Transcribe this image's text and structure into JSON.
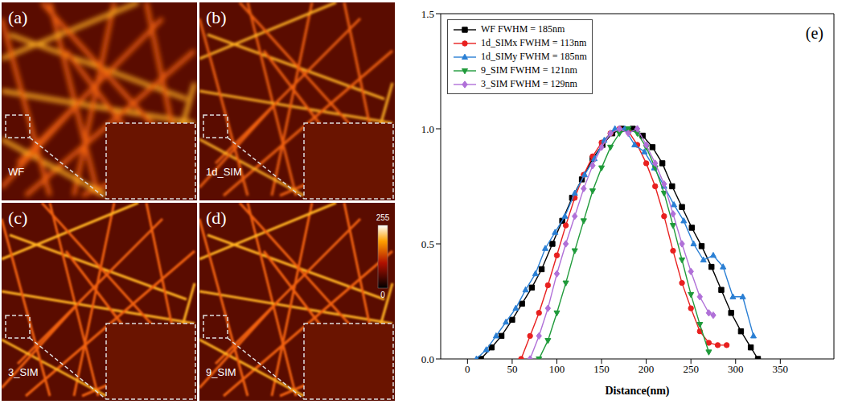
{
  "panels": [
    {
      "letter": "(a)",
      "label": "WF"
    },
    {
      "letter": "(b)",
      "label": "1d_SIM"
    },
    {
      "letter": "(c)",
      "label": "3_SIM"
    },
    {
      "letter": "(d)",
      "label": "9_SIM",
      "colorbar": {
        "range": [
          0,
          255
        ],
        "ticks": [
          0,
          255
        ]
      }
    }
  ],
  "chart_data": {
    "type": "line",
    "panel_label": "(e)",
    "x_label": "Distance(nm)",
    "xlim": [
      -30,
      410
    ],
    "xticks": [
      0,
      50,
      100,
      150,
      200,
      250,
      300,
      350
    ],
    "ylim": [
      0,
      1.5
    ],
    "yticks": [
      {
        "value": 0,
        "label": "0.0"
      },
      {
        "value": 0.5,
        "label": "0.5"
      },
      {
        "value": 1,
        "label": "1.0"
      },
      {
        "value": 1.5,
        "label": "1.5"
      }
    ],
    "legend": "upper left",
    "series": [
      {
        "name": "WF FWHM = 185nm",
        "color": "#000000",
        "marker": "square",
        "x": [
          15,
          27,
          38,
          50,
          61,
          72,
          83,
          95,
          106,
          117,
          128,
          140,
          151,
          162,
          173,
          185,
          196,
          207,
          218,
          229,
          240,
          251,
          262,
          273,
          284,
          295,
          306,
          317,
          325
        ],
        "values": [
          0,
          0.05,
          0.1,
          0.17,
          0.24,
          0.31,
          0.39,
          0.5,
          0.6,
          0.7,
          0.78,
          0.87,
          0.93,
          0.98,
          1.0,
          1.0,
          0.97,
          0.92,
          0.85,
          0.75,
          0.66,
          0.57,
          0.49,
          0.4,
          0.3,
          0.2,
          0.12,
          0.05,
          0
        ]
      },
      {
        "name": "1d_SIMx FWHM = 113nm",
        "color": "#e8201f",
        "marker": "circle",
        "x": [
          60,
          70,
          80,
          90,
          100,
          110,
          120,
          130,
          140,
          150,
          160,
          170,
          180,
          190,
          200,
          210,
          220,
          230,
          240,
          250,
          260,
          270,
          280,
          290
        ],
        "values": [
          0,
          0.1,
          0.2,
          0.32,
          0.45,
          0.58,
          0.7,
          0.8,
          0.88,
          0.94,
          0.98,
          1.0,
          0.99,
          0.93,
          0.85,
          0.75,
          0.62,
          0.47,
          0.33,
          0.22,
          0.12,
          0.07,
          0.06,
          0.06
        ]
      },
      {
        "name": "1d_SIMy FWHM = 185nm",
        "color": "#2a7fd4",
        "marker": "triangle",
        "x": [
          10,
          21,
          32,
          43,
          54,
          65,
          76,
          87,
          98,
          109,
          120,
          131,
          142,
          153,
          165,
          176,
          187,
          198,
          209,
          220,
          231,
          242,
          253,
          264,
          275,
          286,
          297,
          308,
          320
        ],
        "values": [
          0,
          0.04,
          0.1,
          0.16,
          0.22,
          0.3,
          0.37,
          0.48,
          0.55,
          0.62,
          0.72,
          0.8,
          0.87,
          0.95,
          1.0,
          1.0,
          0.93,
          0.9,
          0.83,
          0.75,
          0.67,
          0.6,
          0.5,
          0.43,
          0.45,
          0.4,
          0.27,
          0.27,
          0.1
        ]
      },
      {
        "name": "9_SIM FWHM = 121nm",
        "color": "#1f9a3a",
        "marker": "triangle-down",
        "x": [
          80,
          90,
          100,
          110,
          120,
          130,
          140,
          150,
          160,
          170,
          180,
          190,
          200,
          210,
          220,
          230,
          240,
          250,
          260,
          270
        ],
        "values": [
          0,
          0.08,
          0.2,
          0.33,
          0.47,
          0.6,
          0.73,
          0.83,
          0.92,
          0.98,
          1.0,
          0.98,
          0.92,
          0.83,
          0.72,
          0.58,
          0.43,
          0.28,
          0.15,
          0.03
        ]
      },
      {
        "name": "3_SIM FWHM = 129nm",
        "color": "#b070d8",
        "marker": "diamond",
        "x": [
          70,
          80,
          90,
          100,
          110,
          120,
          130,
          140,
          150,
          160,
          170,
          180,
          190,
          200,
          210,
          220,
          230,
          240,
          250,
          260,
          270,
          275
        ],
        "values": [
          0,
          0.1,
          0.22,
          0.37,
          0.5,
          0.62,
          0.74,
          0.84,
          0.92,
          0.98,
          1.0,
          0.98,
          1.0,
          0.93,
          0.85,
          0.76,
          0.63,
          0.5,
          0.38,
          0.27,
          0.2,
          0.19
        ]
      }
    ]
  }
}
